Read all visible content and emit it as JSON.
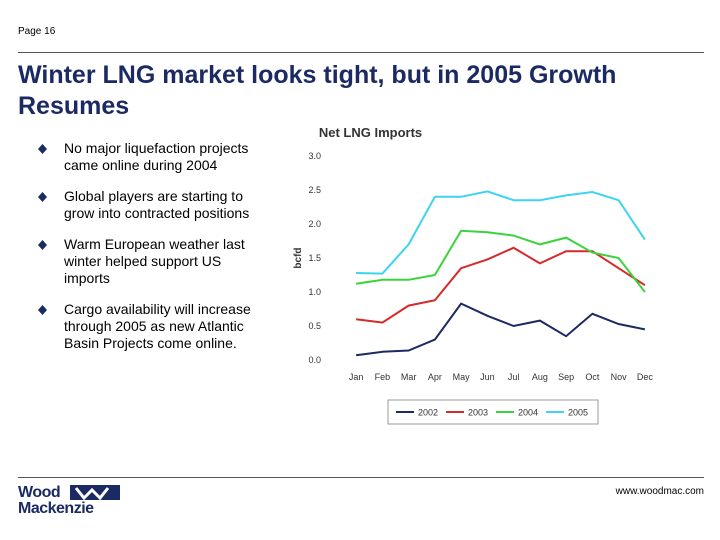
{
  "page_label": "Page 16",
  "title": "Winter LNG market looks tight, but in 2005 Growth Resumes",
  "bullets": [
    "No major liquefaction projects came online during 2004",
    "Global players are starting to grow into contracted positions",
    "Warm European weather last winter helped support US imports",
    "Cargo availability will increase through 2005 as new Atlantic Basin Projects come online."
  ],
  "footer": {
    "logo_line1": "Wood",
    "logo_line2": "Mackenzie",
    "url": "www.woodmac.com"
  },
  "colors": {
    "title": "#1c2a63",
    "series": [
      "#1c2a63",
      "#d42a2a",
      "#3ad43a",
      "#3fd3f0"
    ]
  },
  "chart_data": {
    "type": "line",
    "title": "Net LNG Imports",
    "xlabel": "",
    "ylabel": "bcfd",
    "ylim": [
      0,
      3.0
    ],
    "yticks": [
      "0.0",
      "0.5",
      "1.0",
      "1.5",
      "2.0",
      "2.5",
      "3.0"
    ],
    "grid": false,
    "legend": "bottom",
    "categories": [
      "Jan",
      "Feb",
      "Mar",
      "Apr",
      "May",
      "Jun",
      "Jul",
      "Aug",
      "Sep",
      "Oct",
      "Nov",
      "Dec"
    ],
    "series": [
      {
        "name": "2002",
        "color": "#1c2a63",
        "values": [
          0.07,
          0.12,
          0.14,
          0.3,
          0.83,
          0.65,
          0.5,
          0.58,
          0.35,
          0.68,
          0.53,
          0.45
        ]
      },
      {
        "name": "2003",
        "color": "#d42a2a",
        "values": [
          0.6,
          0.55,
          0.8,
          0.88,
          1.35,
          1.48,
          1.65,
          1.42,
          1.6,
          1.6,
          1.35,
          1.1
        ]
      },
      {
        "name": "2004",
        "color": "#3ad43a",
        "values": [
          1.12,
          1.18,
          1.18,
          1.25,
          1.9,
          1.88,
          1.83,
          1.7,
          1.8,
          1.58,
          1.5,
          1.0
        ]
      },
      {
        "name": "2005",
        "color": "#3fd3f0",
        "values": [
          1.28,
          1.27,
          1.7,
          2.4,
          2.4,
          2.48,
          2.35,
          2.35,
          2.42,
          2.47,
          2.35,
          1.77
        ]
      }
    ]
  }
}
